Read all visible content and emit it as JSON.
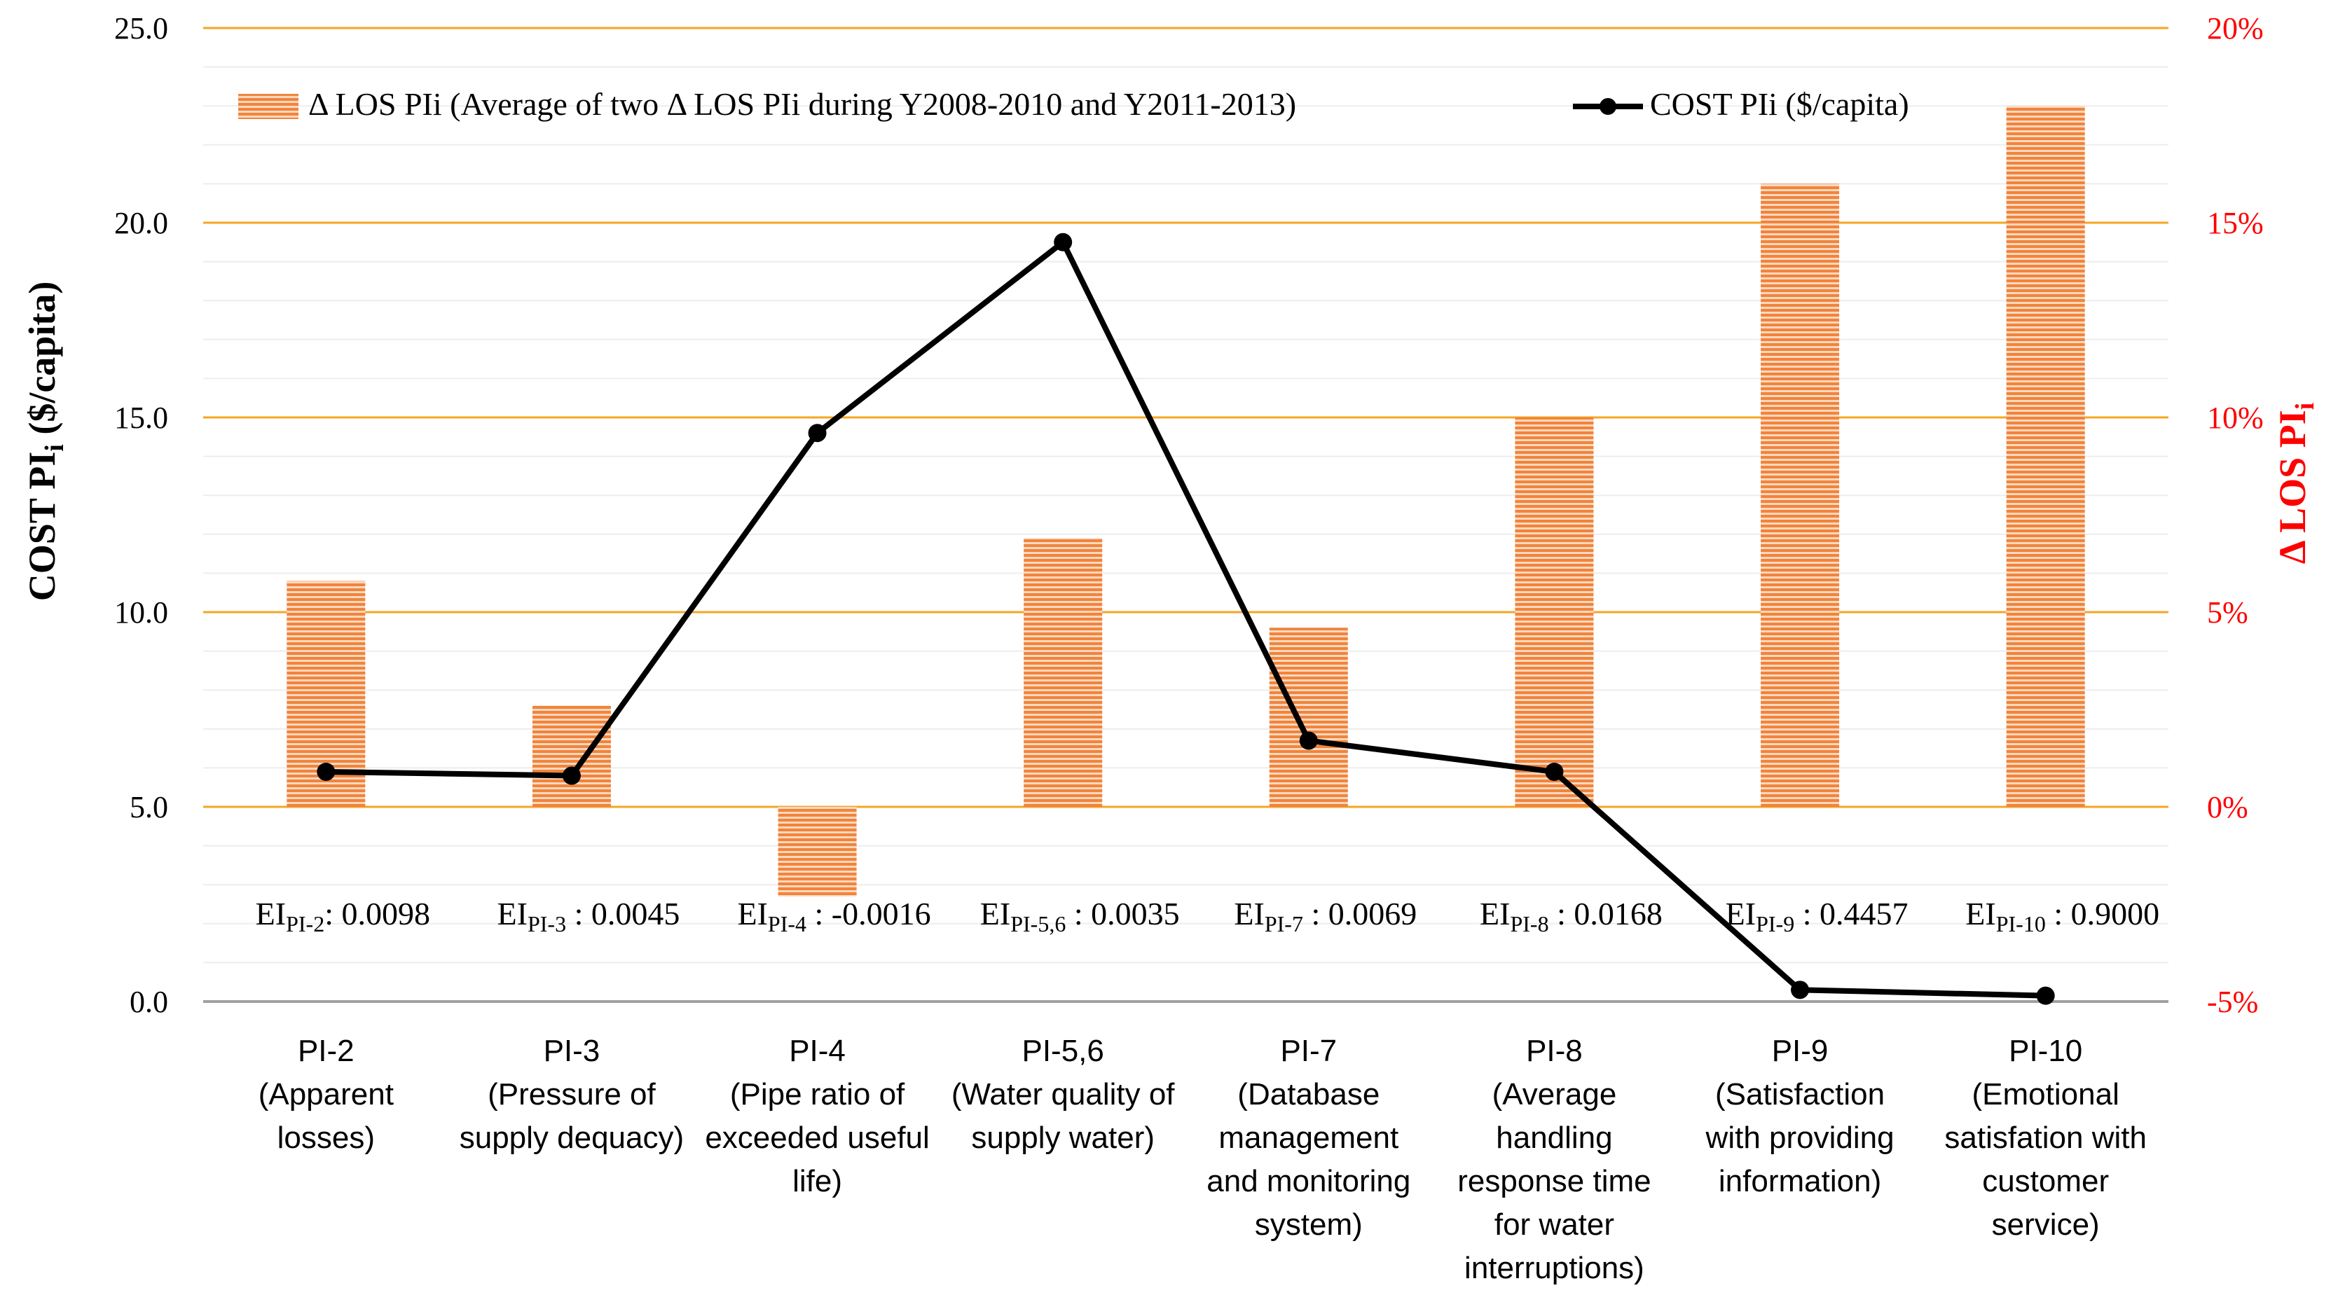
{
  "chart_data": {
    "type": "bar+line",
    "categories": [
      "PI-2",
      "PI-3",
      "PI-4",
      "PI-5,6",
      "PI-7",
      "PI-8",
      "PI-9",
      "PI-10"
    ],
    "category_labels": [
      [
        "PI-2",
        "(Apparent",
        "losses)"
      ],
      [
        "PI-3",
        "(Pressure of",
        "supply dequacy)"
      ],
      [
        "PI-4",
        "(Pipe ratio of",
        "exceeded useful",
        "life)"
      ],
      [
        "PI-5,6",
        "(Water quality of",
        "supply water)"
      ],
      [
        "PI-7",
        "(Database",
        "management",
        "and monitoring",
        "system)"
      ],
      [
        "PI-8",
        "(Average",
        "handling",
        "response time",
        "for water",
        "interruptions)"
      ],
      [
        "PI-9",
        "(Satisfaction",
        "with providing",
        "information)"
      ],
      [
        "PI-10",
        "(Emotional",
        "satisfation with",
        "customer",
        "service)"
      ]
    ],
    "series": [
      {
        "name": "Δ LOS PIi (Average of two Δ LOS PIi during Y2008-2010 and Y2011-2013)",
        "type": "bar",
        "axis": "right",
        "color": "#F0843C",
        "values": [
          5.8,
          2.6,
          -2.3,
          6.9,
          4.6,
          10.0,
          16.0,
          18.0
        ]
      },
      {
        "name": "COST PIi ($/capita)",
        "type": "line",
        "axis": "left",
        "color": "#000000",
        "values": [
          5.9,
          5.8,
          14.6,
          19.5,
          6.7,
          5.9,
          0.3,
          0.15
        ]
      }
    ],
    "ei_labels": [
      {
        "sub": "PI-2",
        "value": ": 0.0098"
      },
      {
        "sub": "PI-3",
        "value": " : 0.0045"
      },
      {
        "sub": "PI-4",
        "value": " : -0.0016"
      },
      {
        "sub": "PI-5,6",
        "value": " : 0.0035"
      },
      {
        "sub": "PI-7",
        "value": " : 0.0069"
      },
      {
        "sub": "PI-8",
        "value": " : 0.0168"
      },
      {
        "sub": "PI-9",
        "value": " : 0.4457"
      },
      {
        "sub": "PI-10",
        "value": " : 0.9000"
      }
    ],
    "ei_prefix": "EI",
    "y_left": {
      "label_main": "COST  PI",
      "label_sub": "i",
      "label_tail": " ($/capita)",
      "range": [
        0,
        25
      ],
      "ticks": [
        "0.0",
        "5.0",
        "10.0",
        "15.0",
        "20.0",
        "25.0"
      ],
      "tick_values": [
        0,
        5,
        10,
        15,
        20,
        25
      ]
    },
    "y_right": {
      "label_main": "Δ LOS  PI",
      "label_sub": "i",
      "range": [
        -5,
        20
      ],
      "ticks": [
        "-5%",
        "0%",
        "5%",
        "10%",
        "15%",
        "20%"
      ],
      "tick_values": [
        -5,
        0,
        5,
        10,
        15,
        20
      ],
      "color": "#FF0000"
    },
    "legend": {
      "position": "top",
      "bar_label": "Δ LOS PIi (Average of two Δ LOS PIi during Y2008-2010 and Y2011-2013)",
      "line_label": "COST PIi ($/capita)"
    },
    "grid": true,
    "gridline_color": "#F5A623"
  }
}
